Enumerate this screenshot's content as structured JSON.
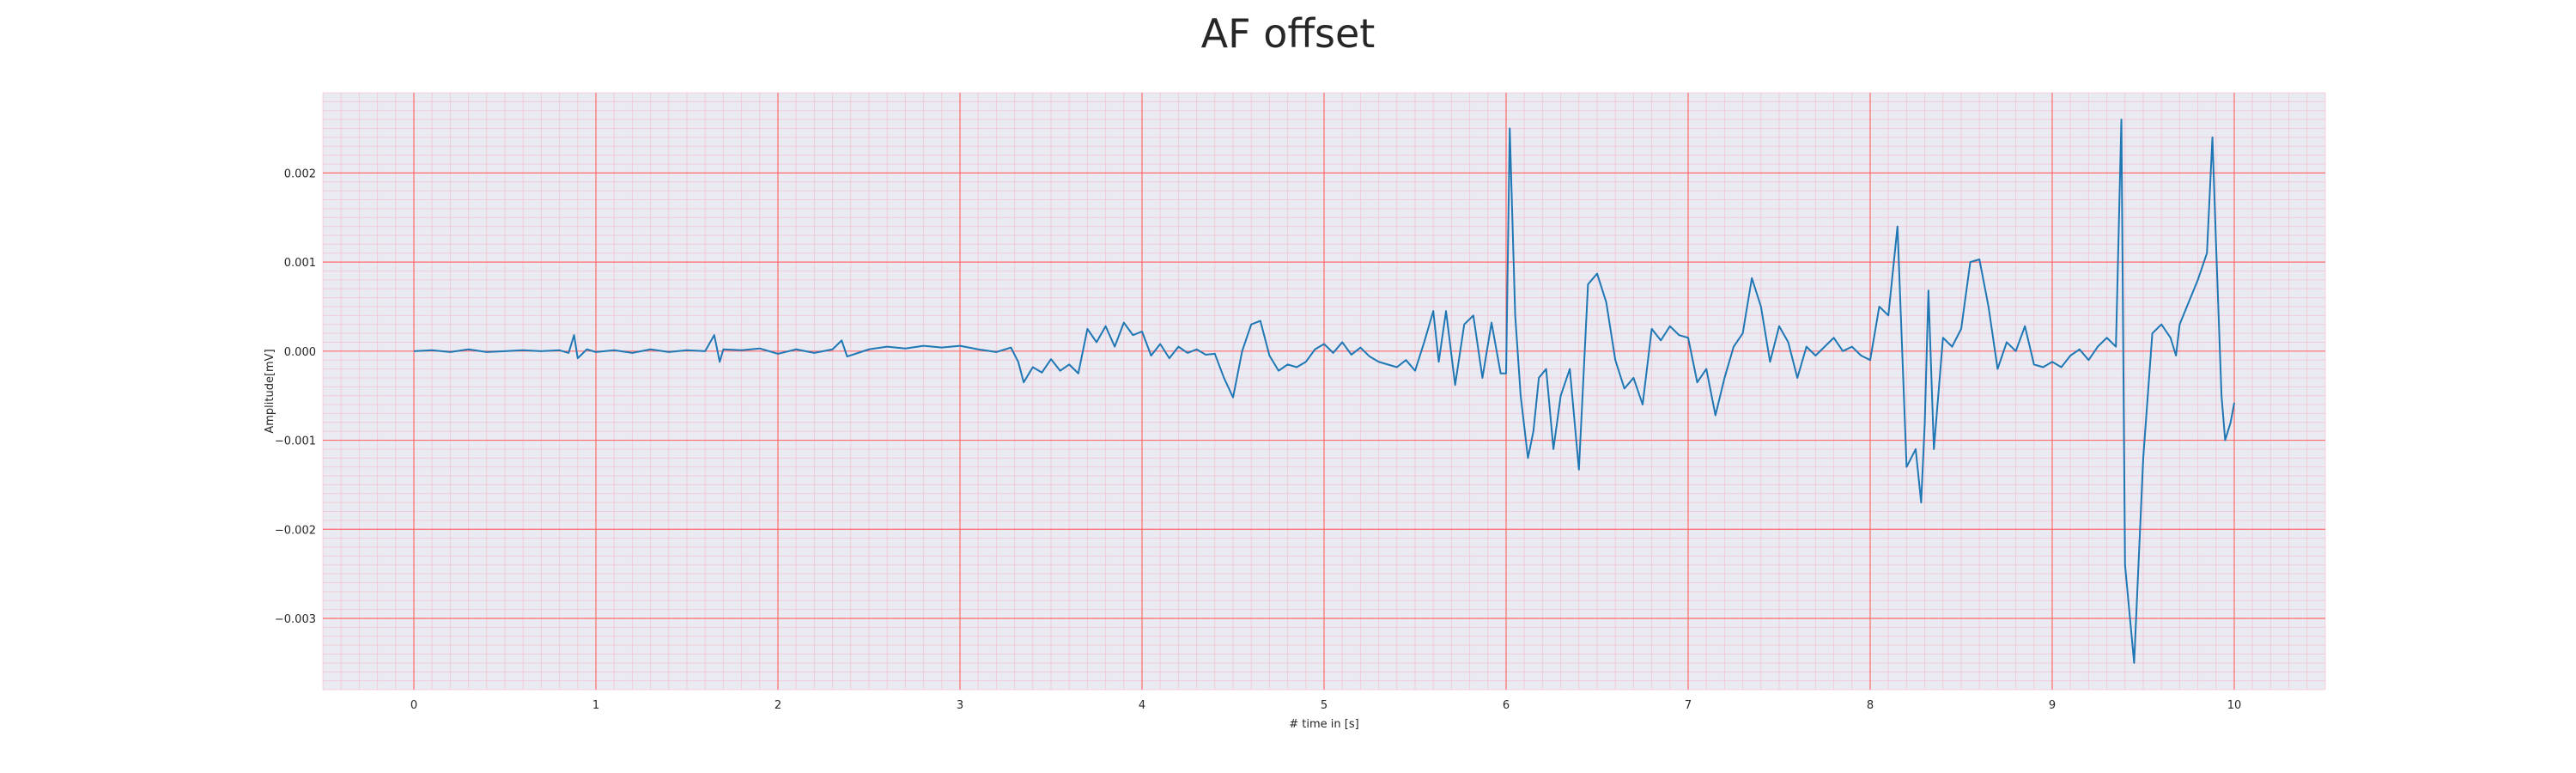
{
  "chart_data": {
    "type": "line",
    "title": "AF offset",
    "xlabel": "# time in [s]",
    "ylabel": "Amplitude[mV]",
    "xlim": [
      -0.5,
      10.5
    ],
    "ylim": [
      -0.0038,
      0.0029
    ],
    "x_ticks": [
      0,
      1,
      2,
      3,
      4,
      5,
      6,
      7,
      8,
      9,
      10
    ],
    "x_tick_labels": [
      "0",
      "1",
      "2",
      "3",
      "4",
      "5",
      "6",
      "7",
      "8",
      "9",
      "10"
    ],
    "y_ticks": [
      -0.003,
      -0.002,
      -0.001,
      0.0,
      0.001,
      0.002
    ],
    "y_tick_labels": [
      "−0.003",
      "−0.002",
      "−0.001",
      "0.000",
      "0.001",
      "0.002"
    ],
    "grid": true,
    "minor_grid": true,
    "legend": "none",
    "colors": {
      "line": "#1f77b4",
      "plot_background": "#eaeaf2",
      "major_grid": "#ff6b6b",
      "minor_grid": "#f4b4c4"
    },
    "series": [
      {
        "values": [
          [
            0.0,
            0.0
          ],
          [
            0.1,
            1e-05
          ],
          [
            0.2,
            -1e-05
          ],
          [
            0.3,
            2e-05
          ],
          [
            0.4,
            -1e-05
          ],
          [
            0.5,
            0.0
          ],
          [
            0.6,
            1e-05
          ],
          [
            0.7,
            0.0
          ],
          [
            0.8,
            1e-05
          ],
          [
            0.85,
            -2e-05
          ],
          [
            0.88,
            0.00018
          ],
          [
            0.9,
            -8e-05
          ],
          [
            0.95,
            2e-05
          ],
          [
            1.0,
            -1e-05
          ],
          [
            1.1,
            1e-05
          ],
          [
            1.2,
            -2e-05
          ],
          [
            1.3,
            2e-05
          ],
          [
            1.4,
            -1e-05
          ],
          [
            1.5,
            1e-05
          ],
          [
            1.6,
            0.0
          ],
          [
            1.65,
            0.00018
          ],
          [
            1.68,
            -0.00012
          ],
          [
            1.7,
            2e-05
          ],
          [
            1.8,
            1e-05
          ],
          [
            1.9,
            3e-05
          ],
          [
            2.0,
            -3e-05
          ],
          [
            2.1,
            2e-05
          ],
          [
            2.2,
            -2e-05
          ],
          [
            2.3,
            2e-05
          ],
          [
            2.35,
            0.00012
          ],
          [
            2.38,
            -6e-05
          ],
          [
            2.5,
            2e-05
          ],
          [
            2.6,
            5e-05
          ],
          [
            2.7,
            3e-05
          ],
          [
            2.8,
            6e-05
          ],
          [
            2.9,
            4e-05
          ],
          [
            3.0,
            6e-05
          ],
          [
            3.1,
            2e-05
          ],
          [
            3.2,
            -1e-05
          ],
          [
            3.28,
            4e-05
          ],
          [
            3.32,
            -0.00012
          ],
          [
            3.35,
            -0.00035
          ],
          [
            3.4,
            -0.00018
          ],
          [
            3.45,
            -0.00024
          ],
          [
            3.5,
            -9e-05
          ],
          [
            3.55,
            -0.00022
          ],
          [
            3.6,
            -0.00015
          ],
          [
            3.65,
            -0.00025
          ],
          [
            3.7,
            0.00025
          ],
          [
            3.75,
            0.0001
          ],
          [
            3.8,
            0.00028
          ],
          [
            3.85,
            5e-05
          ],
          [
            3.9,
            0.00032
          ],
          [
            3.95,
            0.00018
          ],
          [
            4.0,
            0.00022
          ],
          [
            4.05,
            -5e-05
          ],
          [
            4.1,
            8e-05
          ],
          [
            4.15,
            -8e-05
          ],
          [
            4.2,
            5e-05
          ],
          [
            4.25,
            -2e-05
          ],
          [
            4.3,
            2e-05
          ],
          [
            4.35,
            -4e-05
          ],
          [
            4.4,
            -3e-05
          ],
          [
            4.45,
            -0.0003
          ],
          [
            4.5,
            -0.00052
          ],
          [
            4.55,
            0.0
          ],
          [
            4.6,
            0.0003
          ],
          [
            4.65,
            0.00034
          ],
          [
            4.7,
            -5e-05
          ],
          [
            4.75,
            -0.00022
          ],
          [
            4.8,
            -0.00015
          ],
          [
            4.85,
            -0.00018
          ],
          [
            4.9,
            -0.00012
          ],
          [
            4.95,
            2e-05
          ],
          [
            5.0,
            8e-05
          ],
          [
            5.05,
            -2e-05
          ],
          [
            5.1,
            0.0001
          ],
          [
            5.15,
            -4e-05
          ],
          [
            5.2,
            4e-05
          ],
          [
            5.25,
            -6e-05
          ],
          [
            5.3,
            -0.00012
          ],
          [
            5.35,
            -0.00015
          ],
          [
            5.4,
            -0.00018
          ],
          [
            5.45,
            -0.0001
          ],
          [
            5.5,
            -0.00022
          ],
          [
            5.55,
            0.0001
          ],
          [
            5.6,
            0.00045
          ],
          [
            5.63,
            -0.00012
          ],
          [
            5.67,
            0.00045
          ],
          [
            5.72,
            -0.00038
          ],
          [
            5.77,
            0.0003
          ],
          [
            5.82,
            0.0004
          ],
          [
            5.87,
            -0.0003
          ],
          [
            5.92,
            0.00032
          ],
          [
            5.97,
            -0.00025
          ],
          [
            6.0,
            -0.00025
          ],
          [
            6.02,
            0.0025
          ],
          [
            6.05,
            0.0004
          ],
          [
            6.08,
            -0.0005
          ],
          [
            6.12,
            -0.0012
          ],
          [
            6.15,
            -0.0009
          ],
          [
            6.18,
            -0.0003
          ],
          [
            6.22,
            -0.0002
          ],
          [
            6.26,
            -0.0011
          ],
          [
            6.3,
            -0.0005
          ],
          [
            6.35,
            -0.0002
          ],
          [
            6.4,
            -0.00133
          ],
          [
            6.45,
            0.00075
          ],
          [
            6.5,
            0.00087
          ],
          [
            6.55,
            0.00055
          ],
          [
            6.6,
            -0.0001
          ],
          [
            6.65,
            -0.00042
          ],
          [
            6.7,
            -0.0003
          ],
          [
            6.75,
            -0.0006
          ],
          [
            6.8,
            0.00025
          ],
          [
            6.85,
            0.00012
          ],
          [
            6.9,
            0.00028
          ],
          [
            6.95,
            0.00018
          ],
          [
            7.0,
            0.00015
          ],
          [
            7.05,
            -0.00035
          ],
          [
            7.1,
            -0.0002
          ],
          [
            7.15,
            -0.00072
          ],
          [
            7.2,
            -0.0003
          ],
          [
            7.25,
            5e-05
          ],
          [
            7.3,
            0.0002
          ],
          [
            7.35,
            0.00082
          ],
          [
            7.4,
            0.0005
          ],
          [
            7.45,
            -0.00012
          ],
          [
            7.5,
            0.00028
          ],
          [
            7.55,
            0.0001
          ],
          [
            7.6,
            -0.0003
          ],
          [
            7.65,
            5e-05
          ],
          [
            7.7,
            -5e-05
          ],
          [
            7.75,
            5e-05
          ],
          [
            7.8,
            0.00015
          ],
          [
            7.85,
            0.0
          ],
          [
            7.9,
            5e-05
          ],
          [
            7.95,
            -5e-05
          ],
          [
            8.0,
            -0.0001
          ],
          [
            8.05,
            0.0005
          ],
          [
            8.1,
            0.0004
          ],
          [
            8.15,
            0.0014
          ],
          [
            8.2,
            -0.0013
          ],
          [
            8.25,
            -0.0011
          ],
          [
            8.28,
            -0.0017
          ],
          [
            8.3,
            -0.0008
          ],
          [
            8.32,
            0.00068
          ],
          [
            8.35,
            -0.0011
          ],
          [
            8.4,
            0.00015
          ],
          [
            8.45,
            5e-05
          ],
          [
            8.5,
            0.00025
          ],
          [
            8.55,
            0.001
          ],
          [
            8.6,
            0.00103
          ],
          [
            8.65,
            0.0005
          ],
          [
            8.7,
            -0.0002
          ],
          [
            8.75,
            0.0001
          ],
          [
            8.8,
            0.0
          ],
          [
            8.85,
            0.00028
          ],
          [
            8.9,
            -0.00015
          ],
          [
            8.95,
            -0.00018
          ],
          [
            9.0,
            -0.00012
          ],
          [
            9.05,
            -0.00018
          ],
          [
            9.1,
            -5e-05
          ],
          [
            9.15,
            2e-05
          ],
          [
            9.2,
            -0.0001
          ],
          [
            9.25,
            5e-05
          ],
          [
            9.3,
            0.00015
          ],
          [
            9.35,
            5e-05
          ],
          [
            9.38,
            0.0026
          ],
          [
            9.4,
            -0.0024
          ],
          [
            9.45,
            -0.0035
          ],
          [
            9.5,
            -0.0012
          ],
          [
            9.55,
            0.0002
          ],
          [
            9.6,
            0.0003
          ],
          [
            9.65,
            0.00015
          ],
          [
            9.68,
            -5e-05
          ],
          [
            9.7,
            0.0003
          ],
          [
            9.75,
            0.00055
          ],
          [
            9.8,
            0.0008
          ],
          [
            9.85,
            0.0011
          ],
          [
            9.88,
            0.0024
          ],
          [
            9.9,
            0.0012
          ],
          [
            9.93,
            -0.0005
          ],
          [
            9.95,
            -0.001
          ],
          [
            9.98,
            -0.0008
          ],
          [
            10.0,
            -0.00058
          ]
        ]
      }
    ]
  }
}
